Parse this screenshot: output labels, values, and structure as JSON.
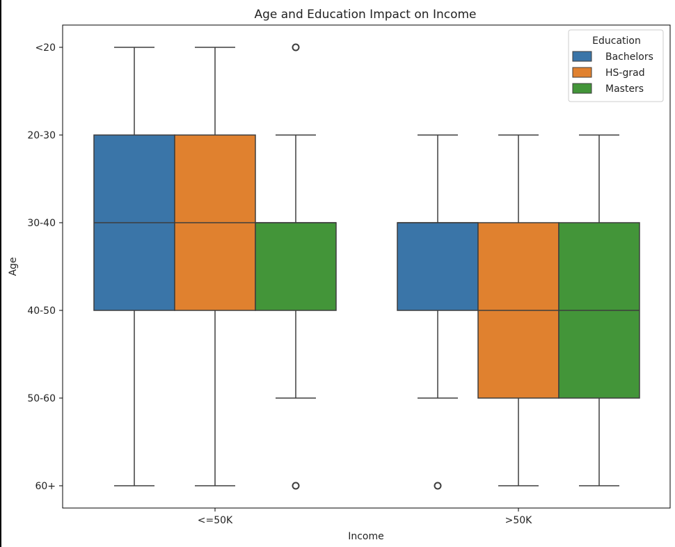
{
  "chart_data": {
    "type": "box",
    "title": "Age and Education Impact on Income",
    "xlabel": "Income",
    "ylabel": "Age",
    "categories": [
      "<=50K",
      ">50K"
    ],
    "y_ticks": [
      "<20",
      "20-30",
      "30-40",
      "40-50",
      "50-60",
      "60+"
    ],
    "legend": {
      "title": "Education",
      "position": "top-right"
    },
    "colors": {
      "Bachelors": "#3a75a8",
      "HS-grad": "#e0812f",
      "Masters": "#439539",
      "line": "#3d3d3d"
    },
    "series": [
      {
        "name": "Bachelors",
        "boxes": [
          {
            "category": "<=50K",
            "whisker_low": "<20",
            "q1": "20-30",
            "median": "30-40",
            "q3": "40-50",
            "whisker_high": "60+",
            "outliers": []
          },
          {
            "category": ">50K",
            "whisker_low": "20-30",
            "q1": "30-40",
            "median": "30-40",
            "q3": "40-50",
            "whisker_high": "50-60",
            "outliers": [
              "60+"
            ]
          }
        ]
      },
      {
        "name": "HS-grad",
        "boxes": [
          {
            "category": "<=50K",
            "whisker_low": "<20",
            "q1": "20-30",
            "median": "30-40",
            "q3": "40-50",
            "whisker_high": "60+",
            "outliers": []
          },
          {
            "category": ">50K",
            "whisker_low": "20-30",
            "q1": "30-40",
            "median": "40-50",
            "q3": "50-60",
            "whisker_high": "60+",
            "outliers": []
          }
        ]
      },
      {
        "name": "Masters",
        "boxes": [
          {
            "category": "<=50K",
            "whisker_low": "20-30",
            "q1": "30-40",
            "median": "30-40",
            "q3": "40-50",
            "whisker_high": "50-60",
            "outliers": [
              "<20",
              "60+"
            ]
          },
          {
            "category": ">50K",
            "whisker_low": "20-30",
            "q1": "30-40",
            "median": "40-50",
            "q3": "50-60",
            "whisker_high": "60+",
            "outliers": []
          }
        ]
      }
    ]
  }
}
